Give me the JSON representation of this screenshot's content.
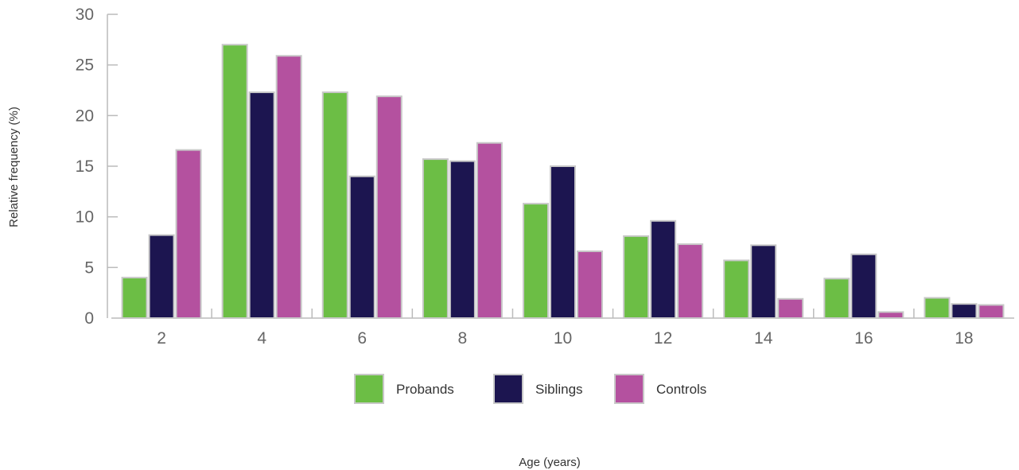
{
  "chart_data": {
    "type": "bar",
    "title": "",
    "xlabel": "Age (years)",
    "ylabel": "Relative frequency (%)",
    "ylim": [
      0,
      30
    ],
    "yticks": [
      "0",
      "5",
      "10",
      "15",
      "20",
      "25",
      "30"
    ],
    "categories": [
      "2",
      "4",
      "6",
      "8",
      "10",
      "12",
      "14",
      "16",
      "18"
    ],
    "series": [
      {
        "name": "Probands",
        "color": "#6cbe45",
        "values": [
          4.0,
          27.0,
          22.3,
          15.7,
          11.3,
          8.1,
          5.7,
          3.9,
          2.0
        ]
      },
      {
        "name": "Siblings",
        "color": "#1c1550",
        "values": [
          8.2,
          22.3,
          14.0,
          15.5,
          15.0,
          9.6,
          7.2,
          6.3,
          1.4
        ]
      },
      {
        "name": "Controls",
        "color": "#b4519f",
        "values": [
          16.6,
          25.9,
          21.9,
          17.3,
          6.6,
          7.3,
          1.9,
          0.6,
          1.3
        ]
      }
    ],
    "legend_position": "bottom",
    "grid": false
  }
}
